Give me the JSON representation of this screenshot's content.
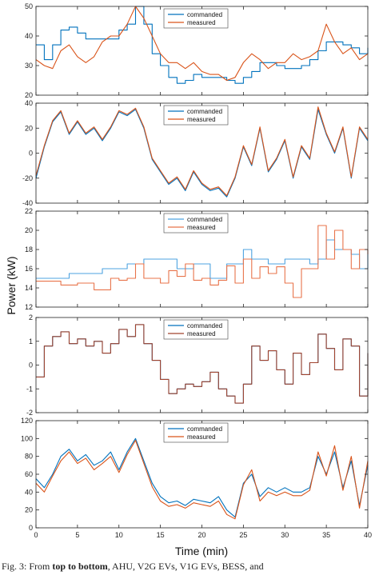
{
  "figure": {
    "ylabel": "Power (kW)",
    "xlabel": "Time (min)",
    "x_ticks": [
      "0",
      "5",
      "10",
      "15",
      "20",
      "25",
      "30",
      "35",
      "40"
    ],
    "caption_prefix": "Fig. 3: From ",
    "caption_bold": "top to bottom",
    "caption_rest": ", AHU, V2G EVs, V1G EVs, BESS, and"
  },
  "chart_data": [
    {
      "type": "line",
      "xlim": [
        0,
        40
      ],
      "ylim": [
        20,
        50
      ],
      "y_ticks": [
        "20",
        "30",
        "40",
        "50"
      ],
      "legend": [
        "commanded",
        "measured"
      ],
      "legend_position": "top-right",
      "series": [
        {
          "name": "commanded",
          "color": "#0072BD",
          "shape": "step",
          "x": [
            0,
            1,
            2,
            3,
            4,
            5,
            6,
            7,
            8,
            9,
            10,
            11,
            12,
            13,
            14,
            15,
            16,
            17,
            18,
            19,
            20,
            21,
            22,
            23,
            24,
            25,
            26,
            27,
            28,
            29,
            30,
            31,
            32,
            33,
            34,
            35,
            36,
            37,
            38,
            39,
            40
          ],
          "y": [
            37,
            32,
            37,
            42,
            43,
            41,
            39,
            39,
            39,
            39,
            42,
            44,
            50,
            44,
            34,
            30,
            26,
            24,
            25,
            27,
            26,
            26,
            26,
            25,
            24,
            26,
            28,
            31,
            31,
            30,
            29,
            29,
            30,
            32,
            35,
            38,
            38,
            37,
            36,
            34,
            36
          ]
        },
        {
          "name": "measured",
          "color": "#D95319",
          "shape": "line",
          "x": [
            0,
            1,
            2,
            3,
            4,
            5,
            6,
            7,
            8,
            9,
            10,
            11,
            12,
            13,
            14,
            15,
            16,
            17,
            18,
            19,
            20,
            21,
            22,
            23,
            24,
            25,
            26,
            27,
            28,
            29,
            30,
            31,
            32,
            33,
            34,
            35,
            36,
            37,
            38,
            39,
            40
          ],
          "y": [
            32,
            30,
            29,
            35,
            37,
            33,
            31,
            33,
            38,
            40,
            40,
            44,
            50,
            46,
            40,
            34,
            31,
            31,
            29,
            31,
            28,
            27,
            27,
            25,
            26,
            31,
            34,
            32,
            29,
            31,
            31,
            34,
            32,
            33,
            35,
            44,
            38,
            34,
            36,
            32,
            34
          ]
        }
      ]
    },
    {
      "type": "line",
      "xlim": [
        0,
        40
      ],
      "ylim": [
        -40,
        40
      ],
      "y_ticks": [
        "-40",
        "-20",
        "0",
        "20",
        "40"
      ],
      "legend": [
        "commanded",
        "measured"
      ],
      "legend_position": "top-right",
      "series": [
        {
          "name": "commanded",
          "color": "#0072BD",
          "shape": "line",
          "x": [
            0,
            1,
            2,
            3,
            4,
            5,
            6,
            7,
            8,
            9,
            10,
            11,
            12,
            13,
            14,
            15,
            16,
            17,
            18,
            19,
            20,
            21,
            22,
            23,
            24,
            25,
            26,
            27,
            28,
            29,
            30,
            31,
            32,
            33,
            34,
            35,
            36,
            37,
            38,
            39,
            40
          ],
          "y": [
            -20,
            5,
            25,
            33,
            15,
            25,
            15,
            20,
            10,
            20,
            33,
            30,
            35,
            20,
            -5,
            -15,
            -25,
            -20,
            -30,
            -15,
            -25,
            -30,
            -28,
            -35,
            -20,
            5,
            -10,
            20,
            -15,
            -5,
            10,
            -20,
            5,
            -5,
            35,
            15,
            0,
            20,
            -20,
            20,
            10
          ]
        },
        {
          "name": "measured",
          "color": "#D95319",
          "shape": "line",
          "x": [
            0,
            1,
            2,
            3,
            4,
            5,
            6,
            7,
            8,
            9,
            10,
            11,
            12,
            13,
            14,
            15,
            16,
            17,
            18,
            19,
            20,
            21,
            22,
            23,
            24,
            25,
            26,
            27,
            28,
            29,
            30,
            31,
            32,
            33,
            34,
            35,
            36,
            37,
            38,
            39,
            40
          ],
          "y": [
            -18,
            6,
            26,
            34,
            16,
            26,
            16,
            21,
            11,
            21,
            34,
            31,
            36,
            21,
            -4,
            -14,
            -24,
            -19,
            -29,
            -14,
            -24,
            -29,
            -27,
            -34,
            -19,
            6,
            -9,
            21,
            -14,
            -4,
            11,
            -19,
            6,
            -4,
            37,
            16,
            1,
            21,
            -19,
            21,
            11
          ]
        }
      ]
    },
    {
      "type": "line",
      "xlim": [
        0,
        40
      ],
      "ylim": [
        12,
        22
      ],
      "y_ticks": [
        "12",
        "14",
        "16",
        "18",
        "20",
        "22"
      ],
      "legend": [
        "commanded",
        "measured"
      ],
      "legend_position": "top-right",
      "series": [
        {
          "name": "commanded",
          "color": "#4DA3E0",
          "shape": "step",
          "x": [
            0,
            4,
            8,
            11,
            13,
            17,
            19,
            21,
            23,
            25,
            26,
            28,
            30,
            33,
            34,
            35,
            36,
            38,
            39,
            40
          ],
          "y": [
            15,
            15.5,
            16,
            16.5,
            17,
            16,
            16.5,
            15,
            16.5,
            18,
            17,
            16.5,
            17,
            16.5,
            17,
            19,
            18,
            17.5,
            16,
            18
          ]
        },
        {
          "name": "measured",
          "color": "#E8734A",
          "shape": "step",
          "x": [
            0,
            3,
            5,
            7,
            9,
            10,
            11,
            12,
            13,
            15,
            16,
            17,
            18,
            19,
            20,
            21,
            22,
            23,
            24,
            25,
            26,
            27,
            28,
            29,
            30,
            31,
            32,
            33,
            34,
            35,
            36,
            37,
            38,
            39,
            40
          ],
          "y": [
            14.7,
            14.3,
            14.5,
            13.8,
            15,
            14.8,
            15,
            16.5,
            15,
            14.5,
            15.8,
            15.2,
            16.5,
            14.8,
            15,
            14.3,
            14.8,
            16.3,
            14.5,
            17,
            15,
            16.2,
            15.5,
            16.2,
            14.5,
            13,
            16,
            16,
            20.5,
            17,
            20,
            18,
            16,
            18,
            17.5
          ]
        }
      ]
    },
    {
      "type": "line",
      "xlim": [
        0,
        40
      ],
      "ylim": [
        -2,
        2
      ],
      "y_ticks": [
        "-2",
        "-1",
        "0",
        "1",
        "2"
      ],
      "legend": [
        "commanded",
        "measured"
      ],
      "legend_position": "top-right",
      "series": [
        {
          "name": "commanded",
          "color": "#0072BD",
          "shape": "step",
          "x": [
            0,
            1,
            2,
            3,
            4,
            5,
            6,
            7,
            8,
            9,
            10,
            11,
            12,
            13,
            14,
            15,
            16,
            17,
            18,
            19,
            20,
            21,
            22,
            23,
            24,
            25,
            26,
            27,
            28,
            29,
            30,
            31,
            32,
            33,
            34,
            35,
            36,
            37,
            38,
            39,
            40
          ],
          "y": [
            -0.5,
            0.8,
            1.2,
            1.4,
            0.9,
            1.1,
            0.8,
            1.0,
            0.5,
            0.9,
            1.5,
            1.2,
            1.7,
            0.9,
            0.2,
            -0.6,
            -1.2,
            -1.0,
            -0.8,
            -0.9,
            -0.7,
            -0.3,
            -1.0,
            -1.3,
            -1.6,
            -0.8,
            0.8,
            0.2,
            0.6,
            -0.2,
            -0.8,
            0.5,
            -0.4,
            0.1,
            1.3,
            0.7,
            -0.2,
            1.1,
            0.8,
            -1.3,
            0.5
          ]
        },
        {
          "name": "measured",
          "color": "#A2442F",
          "shape": "step",
          "x": [
            0,
            1,
            2,
            3,
            4,
            5,
            6,
            7,
            8,
            9,
            10,
            11,
            12,
            13,
            14,
            15,
            16,
            17,
            18,
            19,
            20,
            21,
            22,
            23,
            24,
            25,
            26,
            27,
            28,
            29,
            30,
            31,
            32,
            33,
            34,
            35,
            36,
            37,
            38,
            39,
            40
          ],
          "y": [
            -0.5,
            0.8,
            1.2,
            1.4,
            0.9,
            1.1,
            0.8,
            1.0,
            0.5,
            0.9,
            1.5,
            1.2,
            1.7,
            0.9,
            0.2,
            -0.6,
            -1.2,
            -1.0,
            -0.8,
            -0.9,
            -0.7,
            -0.3,
            -1.0,
            -1.3,
            -1.6,
            -0.8,
            0.8,
            0.2,
            0.6,
            -0.2,
            -0.8,
            0.5,
            -0.4,
            0.1,
            1.3,
            0.7,
            -0.2,
            1.1,
            0.8,
            -1.3,
            0.5
          ]
        }
      ]
    },
    {
      "type": "line",
      "xlim": [
        0,
        40
      ],
      "ylim": [
        0,
        120
      ],
      "y_ticks": [
        "0",
        "20",
        "40",
        "60",
        "80",
        "100",
        "120"
      ],
      "legend": [
        "commanded",
        "measured"
      ],
      "legend_position": "top-right",
      "series": [
        {
          "name": "commanded",
          "color": "#0072BD",
          "shape": "line",
          "x": [
            0,
            1,
            2,
            3,
            4,
            5,
            6,
            7,
            8,
            9,
            10,
            11,
            12,
            13,
            14,
            15,
            16,
            17,
            18,
            19,
            20,
            21,
            22,
            23,
            24,
            25,
            26,
            27,
            28,
            29,
            30,
            31,
            32,
            33,
            34,
            35,
            36,
            37,
            38,
            39,
            40
          ],
          "y": [
            55,
            45,
            60,
            80,
            88,
            75,
            82,
            70,
            75,
            85,
            65,
            85,
            100,
            75,
            50,
            35,
            28,
            30,
            25,
            32,
            30,
            28,
            35,
            20,
            12,
            50,
            60,
            35,
            45,
            40,
            45,
            40,
            40,
            45,
            80,
            60,
            85,
            45,
            75,
            25,
            70
          ]
        },
        {
          "name": "measured",
          "color": "#D95319",
          "shape": "line",
          "x": [
            0,
            1,
            2,
            3,
            4,
            5,
            6,
            7,
            8,
            9,
            10,
            11,
            12,
            13,
            14,
            15,
            16,
            17,
            18,
            19,
            20,
            21,
            22,
            23,
            24,
            25,
            26,
            27,
            28,
            29,
            30,
            31,
            32,
            33,
            34,
            35,
            36,
            37,
            38,
            39,
            40
          ],
          "y": [
            50,
            40,
            58,
            75,
            85,
            72,
            78,
            65,
            72,
            80,
            62,
            82,
            98,
            72,
            46,
            30,
            24,
            26,
            22,
            28,
            26,
            24,
            30,
            15,
            10,
            48,
            65,
            30,
            40,
            36,
            40,
            36,
            36,
            42,
            85,
            58,
            92,
            42,
            80,
            22,
            75
          ]
        }
      ]
    }
  ]
}
